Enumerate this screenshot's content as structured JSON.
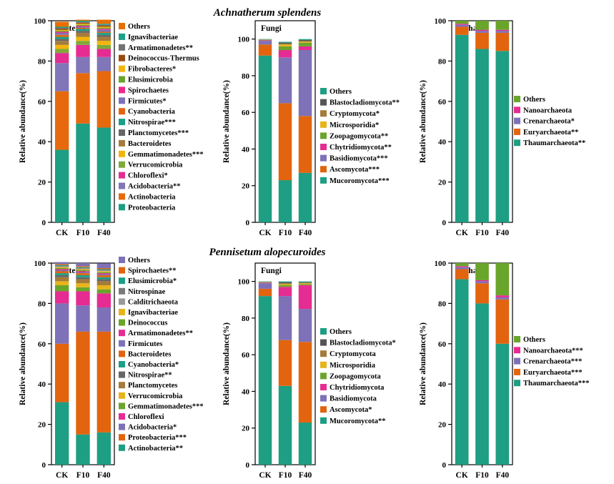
{
  "colors": {
    "Others": "#e76f00",
    "Ignavibacteriae": "#1aa086",
    "Armatimonadetes": "#737373",
    "Deinococcus-Thermus": "#9c4b0e",
    "Fibrobacteres": "#f2b50c",
    "Elusimicrobia": "#6aa52b",
    "Spirochaetes": "#ea2a8b",
    "Firmicutes": "#7e71b7",
    "Cyanobacteria": "#e6650c",
    "Nitrospirae": "#1aa086",
    "Planctomycetes": "#666666",
    "Bacteroidetes": "#a67c3c",
    "Gemmatimonadetes": "#f2b50c",
    "Verrucomicrobia": "#7fa93a",
    "Chloroflexi": "#e52c92",
    "Acidobacteria": "#8076b8",
    "Actinobacteria": "#e66a0d",
    "Proteobacteria": "#1e9e83",
    "Blastocladiomycota": "#555555",
    "Cryptomycota": "#a47b39",
    "Microsporidia": "#e8b41a",
    "Zoopagomycota": "#6aa52b",
    "Chytridiomycota": "#e52c92",
    "Basidiomycota": "#7e71b7",
    "Ascomycota": "#e2640e",
    "Mucoromycota": "#1e9e83",
    "Nanoarchaeota": "#e52c92",
    "Crenarchaeota": "#7e71b7",
    "Euryarchaeota": "#e2640e",
    "Thaumarchaeota": "#1e9e83",
    "OthersGreen": "#6aa52b",
    "OthersPurple": "#7e71b7",
    "OthersTeal": "#1e9e83",
    "Spirochaetes2": "#e2640e",
    "Elusimicrobia2": "#1aa086",
    "Nitrospinae": "#7a7a7a",
    "Calditrichaeota": "#9a9a9a",
    "Ignavibacteriae2": "#e8b41a",
    "Deinococcus2": "#6aa52b",
    "Armatimonadetes2": "#e52c92",
    "Firmicutes2": "#7e71b7",
    "Bacteroidetes2": "#e2640e",
    "Cyanobacteria2": "#1aa086",
    "Nitrospirae2": "#666666",
    "Planctomycetes2": "#a47b39",
    "Verrucomicrobia2": "#e8b41a",
    "Gemmatimonadetes2": "#6aa52b",
    "Chloroflexi2": "#e52c92",
    "Acidobacteria2": "#7e71b7",
    "Proteobacteria2": "#e2640e",
    "Actinobacteria2": "#1e9e83"
  },
  "section_titles": [
    "Achnatherum splendens",
    "Pennisetum alopecuroides"
  ],
  "chart_data": [
    {
      "type": "bar",
      "stacked": true,
      "title": "Bacteria",
      "section": "Achnatherum splendens",
      "ylabel": "Relative abundance(%)",
      "categories": [
        "CK",
        "F10",
        "F40"
      ],
      "ylim": [
        0,
        100
      ],
      "yticks": [
        0,
        20,
        40,
        60,
        80,
        100
      ],
      "series": [
        {
          "name": "Proteobacteria",
          "color": "Proteobacteria",
          "values": [
            36,
            49,
            47
          ]
        },
        {
          "name": "Actinobacteria",
          "color": "Actinobacteria",
          "values": [
            29,
            25,
            28
          ]
        },
        {
          "name": "Acidobacteria**",
          "color": "Acidobacteria",
          "values": [
            14,
            8,
            7
          ]
        },
        {
          "name": "Chloroflexi*",
          "color": "Chloroflexi",
          "values": [
            5,
            6,
            4
          ]
        },
        {
          "name": "Verrucomicrobia",
          "color": "Verrucomicrobia",
          "values": [
            2,
            2,
            2
          ]
        },
        {
          "name": "Gemmatimonadetes***",
          "color": "Gemmatimonadetes",
          "values": [
            2,
            2,
            2
          ]
        },
        {
          "name": "Bacteroidetes",
          "color": "Bacteroidetes",
          "values": [
            2,
            2,
            2
          ]
        },
        {
          "name": "Planctomycetes***",
          "color": "Planctomycetes",
          "values": [
            1,
            1,
            1
          ]
        },
        {
          "name": "Nitrospirae***",
          "color": "Nitrospirae",
          "values": [
            1,
            1,
            1
          ]
        },
        {
          "name": "Cyanobacteria",
          "color": "Cyanobacteria",
          "values": [
            1,
            0.5,
            0.5
          ]
        },
        {
          "name": "Firmicutes*",
          "color": "Firmicutes",
          "values": [
            1,
            0.5,
            1
          ]
        },
        {
          "name": "Spirochaetes",
          "color": "Spirochaetes",
          "values": [
            0.5,
            0.5,
            0.5
          ]
        },
        {
          "name": "Elusimicrobia",
          "color": "Elusimicrobia",
          "values": [
            0.5,
            0.5,
            0.5
          ]
        },
        {
          "name": "Fibrobacteres*",
          "color": "Fibrobacteres",
          "values": [
            0.5,
            0.5,
            0.5
          ]
        },
        {
          "name": "Deinococcus-Thermus",
          "color": "Deinococcus-Thermus",
          "values": [
            0.5,
            0.5,
            0.5
          ]
        },
        {
          "name": "Armatimonadetes**",
          "color": "Armatimonadetes",
          "values": [
            0.5,
            0.5,
            0.5
          ]
        },
        {
          "name": "Ignavibacteriae",
          "color": "Ignavibacteriae",
          "values": [
            0.5,
            0.5,
            0.5
          ]
        },
        {
          "name": "Others",
          "color": "Others",
          "values": [
            2.5,
            0.5,
            2
          ]
        }
      ]
    },
    {
      "type": "bar",
      "stacked": true,
      "title": "Fungi",
      "section": "Achnatherum splendens",
      "ylabel": "Relative abundance(%)",
      "categories": [
        "CK",
        "F10",
        "F40"
      ],
      "ylim": [
        0,
        110
      ],
      "yticks": [
        0,
        20,
        40,
        60,
        80,
        100
      ],
      "series": [
        {
          "name": "Mucoromycota***",
          "color": "Mucoromycota",
          "values": [
            91,
            23,
            27
          ]
        },
        {
          "name": "Ascomycota***",
          "color": "Ascomycota",
          "values": [
            6,
            42,
            31
          ]
        },
        {
          "name": "Basidiomycota***",
          "color": "Basidiomycota",
          "values": [
            2,
            25,
            36
          ]
        },
        {
          "name": "Chytridiomycota**",
          "color": "Chytridiomycota",
          "values": [
            0.3,
            4,
            2
          ]
        },
        {
          "name": "Zoopagomycota**",
          "color": "Zoopagomycota",
          "values": [
            0.2,
            2,
            2
          ]
        },
        {
          "name": "Microsporidia*",
          "color": "Microsporidia",
          "values": [
            0.1,
            1,
            0.5
          ]
        },
        {
          "name": "Cryptomycota*",
          "color": "Cryptomycota",
          "values": [
            0.1,
            0.5,
            0.5
          ]
        },
        {
          "name": "Blastocladiomycota**",
          "color": "Blastocladiomycota",
          "values": [
            0.1,
            0.5,
            0.5
          ]
        },
        {
          "name": "Others",
          "color": "OthersTeal",
          "values": [
            0.2,
            0.5,
            0.5
          ]
        }
      ]
    },
    {
      "type": "bar",
      "stacked": true,
      "title": "Archaea",
      "section": "Achnatherum splendens",
      "ylabel": "Relative abundance(%)",
      "categories": [
        "CK",
        "F10",
        "F40"
      ],
      "ylim": [
        0,
        100
      ],
      "yticks": [
        0,
        20,
        40,
        60,
        80,
        100
      ],
      "series": [
        {
          "name": "Thaumarchaeota**",
          "color": "Thaumarchaeota",
          "values": [
            93,
            86,
            85
          ]
        },
        {
          "name": "Euryarchaeota**",
          "color": "Euryarchaeota",
          "values": [
            4,
            8,
            9
          ]
        },
        {
          "name": "Crenarchaeota*",
          "color": "Crenarchaeota",
          "values": [
            1,
            1,
            1
          ]
        },
        {
          "name": "Nanoarchaeota",
          "color": "Nanoarchaeota",
          "values": [
            0.5,
            0.5,
            0.5
          ]
        },
        {
          "name": "Others",
          "color": "OthersGreen",
          "values": [
            1.5,
            4.5,
            4.5
          ]
        }
      ]
    },
    {
      "type": "bar",
      "stacked": true,
      "title": "Bacteria",
      "section": "Pennisetum alopecuroides",
      "ylabel": "Relative abundance(%)",
      "categories": [
        "CK",
        "F10",
        "F40"
      ],
      "ylim": [
        0,
        100
      ],
      "yticks": [
        0,
        20,
        40,
        60,
        80,
        100
      ],
      "series": [
        {
          "name": "Actinobacteria**",
          "color": "Actinobacteria2",
          "values": [
            31,
            15,
            16
          ]
        },
        {
          "name": "Proteobacteria***",
          "color": "Proteobacteria2",
          "values": [
            29,
            51,
            50
          ]
        },
        {
          "name": "Acidobacteria*",
          "color": "Acidobacteria2",
          "values": [
            20,
            13,
            12
          ]
        },
        {
          "name": "Chloroflexi",
          "color": "Chloroflexi2",
          "values": [
            6,
            7,
            7
          ]
        },
        {
          "name": "Gemmatimonadetes***",
          "color": "Gemmatimonadetes2",
          "values": [
            3,
            2,
            2
          ]
        },
        {
          "name": "Verrucomicrobia",
          "color": "Verrucomicrobia2",
          "values": [
            2,
            2,
            2
          ]
        },
        {
          "name": "Planctomycetes",
          "color": "Planctomycetes2",
          "values": [
            2,
            2,
            2
          ]
        },
        {
          "name": "Nitrospirae**",
          "color": "Nitrospirae2",
          "values": [
            1,
            1,
            1
          ]
        },
        {
          "name": "Cyanobacteria*",
          "color": "Cyanobacteria2",
          "values": [
            1,
            1,
            1
          ]
        },
        {
          "name": "Bacteroidetes",
          "color": "Bacteroidetes2",
          "values": [
            1,
            1,
            1
          ]
        },
        {
          "name": "Firmicutes",
          "color": "Firmicutes2",
          "values": [
            0.5,
            0.5,
            0.5
          ]
        },
        {
          "name": "Armatimonadetes**",
          "color": "Armatimonadetes2",
          "values": [
            0.5,
            0.5,
            0.5
          ]
        },
        {
          "name": "Deinococcus",
          "color": "Deinococcus2",
          "values": [
            0.5,
            0.5,
            0.5
          ]
        },
        {
          "name": "Ignavibacteriae",
          "color": "Ignavibacteriae2",
          "values": [
            0.5,
            0.5,
            0.5
          ]
        },
        {
          "name": "Calditrichaeota",
          "color": "Calditrichaeota",
          "values": [
            0.3,
            0.3,
            0.3
          ]
        },
        {
          "name": "Nitrospinae",
          "color": "Nitrospinae",
          "values": [
            0.3,
            0.3,
            0.3
          ]
        },
        {
          "name": "Elusimicrobia*",
          "color": "Elusimicrobia2",
          "values": [
            0.4,
            0.4,
            0.4
          ]
        },
        {
          "name": "Spirochaetes**",
          "color": "Spirochaetes2",
          "values": [
            0.5,
            0.5,
            0.5
          ]
        },
        {
          "name": "Others",
          "color": "OthersPurple",
          "values": [
            1,
            1.5,
            2.4
          ]
        }
      ]
    },
    {
      "type": "bar",
      "stacked": true,
      "title": "Fungi",
      "section": "Pennisetum alopecuroides",
      "ylabel": "Relative abundance(%)",
      "categories": [
        "CK",
        "F10",
        "F40"
      ],
      "ylim": [
        0,
        110
      ],
      "yticks": [
        0,
        20,
        40,
        60,
        80,
        100
      ],
      "series": [
        {
          "name": "Mucoromycota**",
          "color": "Mucoromycota",
          "values": [
            92,
            43,
            23
          ]
        },
        {
          "name": "Ascomycota*",
          "color": "Ascomycota",
          "values": [
            4,
            25,
            44
          ]
        },
        {
          "name": "Basidiomycota",
          "color": "Basidiomycota",
          "values": [
            3,
            24,
            18
          ]
        },
        {
          "name": "Chytridiomycota",
          "color": "Chytridiomycota",
          "values": [
            0.3,
            5,
            13
          ]
        },
        {
          "name": "Zoopagomycota",
          "color": "Zoopagomycota",
          "values": [
            0.2,
            1,
            0.5
          ]
        },
        {
          "name": "Microsporidia",
          "color": "Microsporidia",
          "values": [
            0.1,
            0.5,
            0.5
          ]
        },
        {
          "name": "Cryptomycota",
          "color": "Cryptomycota",
          "values": [
            0.1,
            0.5,
            0.3
          ]
        },
        {
          "name": "Blastocladiomycota*",
          "color": "Blastocladiomycota",
          "values": [
            0.1,
            0.5,
            0.2
          ]
        },
        {
          "name": "Others",
          "color": "OthersTeal",
          "values": [
            0.2,
            0.5,
            0.5
          ]
        }
      ]
    },
    {
      "type": "bar",
      "stacked": true,
      "title": "Archaea",
      "section": "Pennisetum alopecuroides",
      "ylabel": "Relative abundance(%)",
      "categories": [
        "CK",
        "F10",
        "F40"
      ],
      "ylim": [
        0,
        100
      ],
      "yticks": [
        0,
        20,
        40,
        60,
        80,
        100
      ],
      "series": [
        {
          "name": "Thaumarchaeota***",
          "color": "Thaumarchaeota",
          "values": [
            92,
            80,
            60
          ]
        },
        {
          "name": "Euryarchaeota***",
          "color": "Euryarchaeota",
          "values": [
            5,
            10,
            22
          ]
        },
        {
          "name": "Crenarchaeota***",
          "color": "Crenarchaeota",
          "values": [
            1,
            1,
            1
          ]
        },
        {
          "name": "Nanoarchaeota***",
          "color": "Nanoarchaeota",
          "values": [
            0.5,
            0.5,
            1
          ]
        },
        {
          "name": "Others",
          "color": "OthersGreen",
          "values": [
            1.5,
            8.5,
            16
          ]
        }
      ]
    }
  ]
}
